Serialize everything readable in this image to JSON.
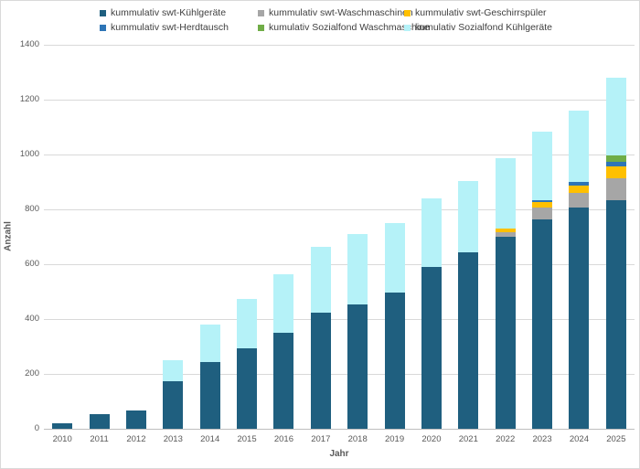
{
  "chart_data": {
    "type": "bar",
    "stacked": true,
    "title": "",
    "xlabel": "Jahr",
    "ylabel": "Anzahl",
    "ylim": [
      0,
      1400
    ],
    "ytick_step": 200,
    "grid": true,
    "legend_position": "top",
    "categories": [
      "2010",
      "2011",
      "2012",
      "2013",
      "2014",
      "2015",
      "2016",
      "2017",
      "2018",
      "2019",
      "2020",
      "2021",
      "2022",
      "2023",
      "2024",
      "2025"
    ],
    "series": [
      {
        "name": "kummulativ swt-Kühlgeräte",
        "color": "#1F5F7F",
        "values": [
          20,
          52,
          68,
          175,
          245,
          295,
          350,
          422,
          455,
          496,
          590,
          645,
          700,
          765,
          807,
          835
        ]
      },
      {
        "name": "kummulativ swt-Waschmaschinen",
        "color": "#A6A6A6",
        "values": [
          0,
          0,
          0,
          0,
          0,
          0,
          0,
          0,
          0,
          0,
          0,
          0,
          18,
          42,
          52,
          78
        ]
      },
      {
        "name": "kummulativ swt-Geschirrspüler",
        "color": "#FFC000",
        "values": [
          0,
          0,
          0,
          0,
          0,
          0,
          0,
          0,
          0,
          0,
          0,
          0,
          13,
          20,
          29,
          43
        ]
      },
      {
        "name": "kummulativ swt-Herdtausch",
        "color": "#2E75B6",
        "values": [
          0,
          0,
          0,
          0,
          0,
          0,
          0,
          0,
          0,
          0,
          0,
          0,
          0,
          8,
          13,
          17
        ]
      },
      {
        "name": "kumulativ Sozialfond Waschmaschine",
        "color": "#70AD47",
        "values": [
          0,
          0,
          0,
          0,
          0,
          0,
          0,
          0,
          0,
          0,
          0,
          0,
          0,
          0,
          0,
          23
        ]
      },
      {
        "name": "kumulativ Sozialfond Kühlgeräte",
        "color": "#B5F2F8",
        "values": [
          0,
          0,
          0,
          75,
          135,
          180,
          215,
          243,
          255,
          254,
          250,
          260,
          255,
          250,
          259,
          283
        ]
      }
    ]
  },
  "colors": {
    "gridline": "#D9D9D9",
    "axis_line": "#BFBFBF",
    "tick_text": "#595959",
    "legend_text": "#404040",
    "background": "#FFFFFF"
  }
}
